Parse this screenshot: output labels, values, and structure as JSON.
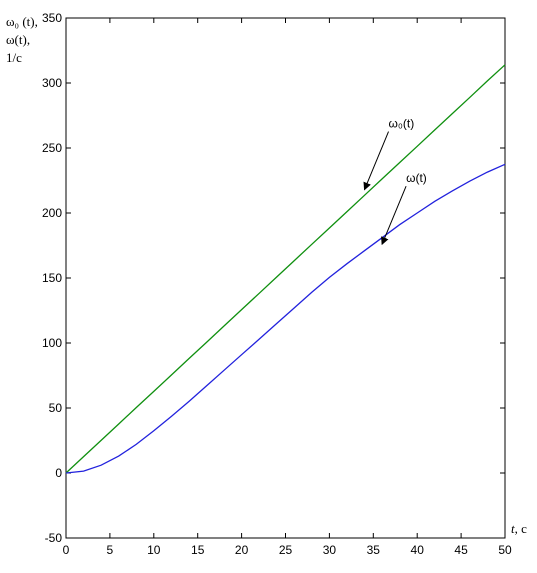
{
  "chart_data": {
    "type": "line",
    "title": "",
    "ylabel_lines": [
      "ω₀ (t),",
      "ω(t),",
      "1/c"
    ],
    "xlabel_var": "t",
    "xlabel_unit": ", c",
    "xlim": [
      0,
      50
    ],
    "ylim": [
      -50,
      350
    ],
    "xticks": [
      0,
      5,
      10,
      15,
      20,
      25,
      30,
      35,
      40,
      45,
      50
    ],
    "yticks": [
      -50,
      0,
      50,
      100,
      150,
      200,
      250,
      300,
      350
    ],
    "grid": false,
    "x": [
      0,
      2,
      4,
      6,
      8,
      10,
      12,
      14,
      16,
      18,
      20,
      22,
      24,
      26,
      28,
      30,
      32,
      34,
      36,
      38,
      40,
      42,
      44,
      46,
      48,
      50
    ],
    "series": [
      {
        "name": "ω₀(t)",
        "color": "#109010",
        "values": [
          0,
          12.6,
          25.1,
          37.7,
          50.3,
          62.8,
          75.4,
          88,
          100.5,
          113.1,
          125.7,
          138.2,
          150.8,
          163.4,
          175.9,
          188.5,
          201.1,
          213.6,
          226.2,
          238.8,
          251.3,
          263.9,
          276.5,
          289,
          301.6,
          314
        ]
      },
      {
        "name": "ω(t)",
        "color": "#2222dd",
        "values": [
          0,
          1.5,
          6,
          13,
          22,
          32.5,
          43.5,
          55,
          67,
          79,
          91,
          103,
          115,
          127,
          139,
          150.5,
          161,
          171,
          181,
          191,
          200,
          209,
          217,
          224.5,
          231.5,
          237.5
        ]
      }
    ],
    "annotations": [
      {
        "text": "ω₀(t)",
        "series": 0,
        "x": 34,
        "y": 218
      },
      {
        "text": "ω(t)",
        "series": 1,
        "x": 36,
        "y": 176
      }
    ]
  }
}
